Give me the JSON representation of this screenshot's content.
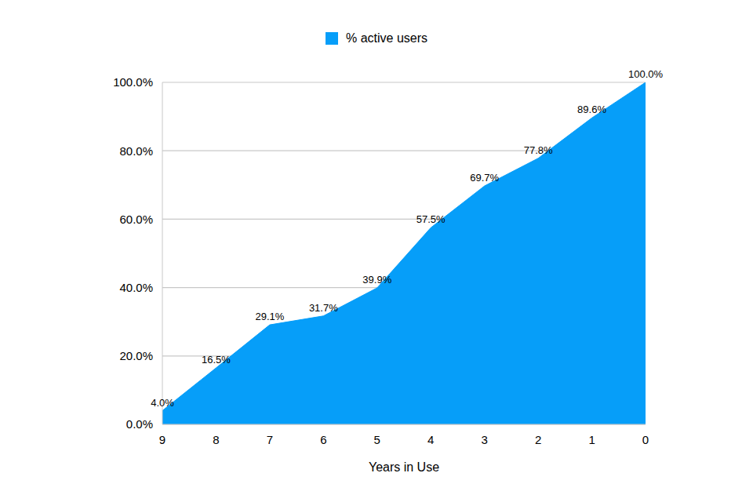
{
  "chart_data": {
    "type": "area",
    "x_label": "Years in Use",
    "categories": [
      "9",
      "8",
      "7",
      "6",
      "5",
      "4",
      "3",
      "2",
      "1",
      "0"
    ],
    "series": [
      {
        "name": "% active users",
        "color": "#069ef9",
        "values": [
          4.0,
          16.5,
          29.1,
          31.7,
          39.9,
          57.5,
          69.7,
          77.8,
          89.6,
          100.0
        ],
        "value_labels": [
          "4.0%",
          "16.5%",
          "29.1%",
          "31.7%",
          "39.9%",
          "57.5%",
          "69.7%",
          "77.8%",
          "89.6%",
          "100.0%"
        ]
      }
    ],
    "ylim": [
      0,
      100
    ],
    "yticks": [
      {
        "value": 0,
        "label": "0.0%"
      },
      {
        "value": 20,
        "label": "20.0%"
      },
      {
        "value": 40,
        "label": "40.0%"
      },
      {
        "value": 60,
        "label": "60.0%"
      },
      {
        "value": 80,
        "label": "80.0%"
      },
      {
        "value": 100,
        "label": "100.0%"
      }
    ],
    "grid": true,
    "legend": "top",
    "data_labels": true
  }
}
